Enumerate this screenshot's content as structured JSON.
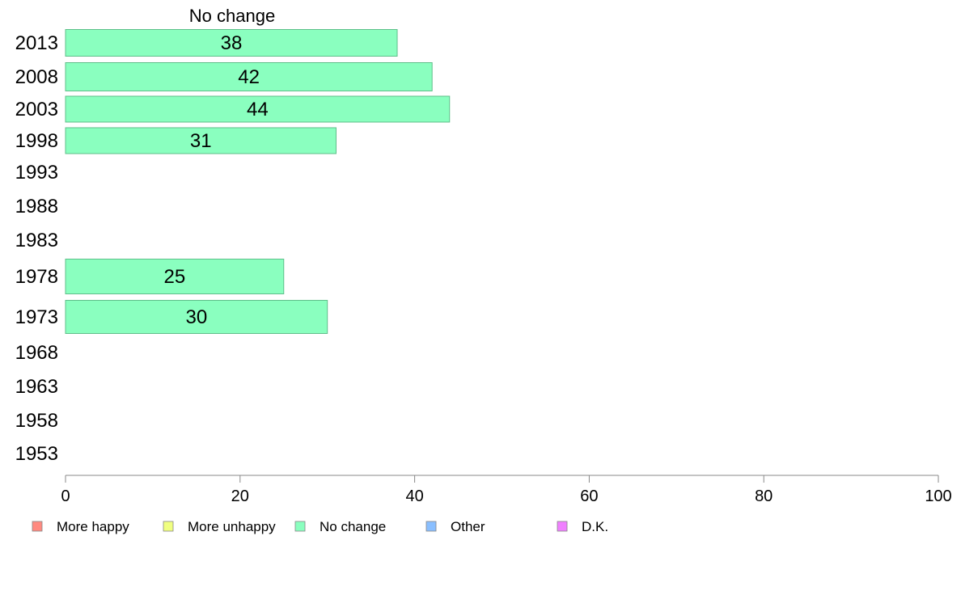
{
  "chart_data": {
    "type": "bar",
    "orientation": "horizontal",
    "title": "No change",
    "categories": [
      "2013",
      "2008",
      "2003",
      "1998",
      "1993",
      "1988",
      "1983",
      "1978",
      "1973",
      "1968",
      "1963",
      "1958",
      "1953"
    ],
    "series": [
      {
        "name": "No change",
        "values": [
          38,
          42,
          44,
          31,
          null,
          null,
          null,
          25,
          30,
          null,
          null,
          null,
          null
        ]
      }
    ],
    "xlim": [
      0,
      100
    ],
    "xticks": [
      0,
      20,
      40,
      60,
      80,
      100
    ],
    "grid": false,
    "legend": {
      "placement": "bottom",
      "entries": [
        {
          "label": "More happy",
          "color": "#ff8a80"
        },
        {
          "label": "More unhappy",
          "color": "#f0ff80"
        },
        {
          "label": "No change",
          "color": "#8affbf"
        },
        {
          "label": "Other",
          "color": "#8abfff"
        },
        {
          "label": "D.K.",
          "color": "#f080ff"
        }
      ]
    },
    "colors": {
      "bar_fill": "#8affbf",
      "bar_stroke": "#5fbf8a",
      "axis": "#888888"
    }
  }
}
